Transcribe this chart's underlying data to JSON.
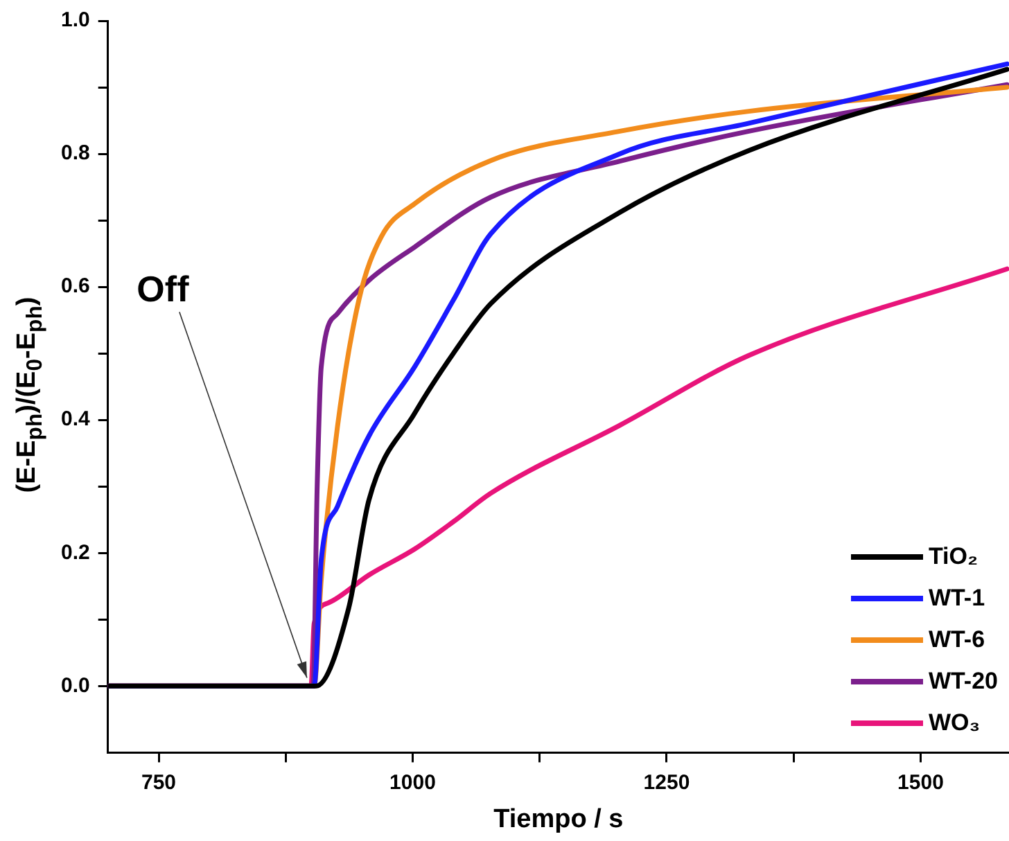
{
  "chart_data": {
    "type": "line",
    "xlabel": "Tiempo / s",
    "ylabel": "(E-E$_{ph}$)/(E$_{0}$-E$_{ph}$)",
    "xlim": [
      700,
      1587
    ],
    "ylim": [
      -0.1,
      1.0
    ],
    "xticks": [
      750,
      {
        "value": 875,
        "label": null
      },
      1000,
      {
        "value": 1125,
        "label": null
      },
      1250,
      {
        "value": 1375,
        "label": null
      },
      1500
    ],
    "yticks": [
      {
        "value": 0,
        "label": "0.0"
      },
      {
        "value": 0.1,
        "label": null
      },
      {
        "value": 0.2,
        "label": "0.2"
      },
      {
        "value": 0.3,
        "label": null
      },
      {
        "value": 0.4,
        "label": "0.4"
      },
      {
        "value": 0.5,
        "label": null
      },
      {
        "value": 0.6,
        "label": "0.6"
      },
      {
        "value": 0.7,
        "label": null
      },
      {
        "value": 0.8,
        "label": "0.8"
      },
      {
        "value": 0.9,
        "label": null
      },
      {
        "value": 1.0,
        "label": "1.0"
      }
    ],
    "grid": false,
    "legend": "bottom right",
    "marker": "none",
    "line_style": "solid",
    "annotations": [
      {
        "text": "Off",
        "x": 900,
        "y": 0
      }
    ],
    "series": [
      {
        "name": "TiO₂",
        "color": "#000000",
        "x": [
          700,
          905,
          937,
          957,
          1002,
          1040,
          1077,
          1204,
          1331,
          1585
        ],
        "values": [
          0,
          0,
          0.117,
          0.28,
          0.41,
          0.5,
          0.575,
          0.712,
          0.805,
          0.927
        ]
      },
      {
        "name": "WT-1",
        "color": "#1a1aff",
        "x": [
          700,
          903,
          910,
          926,
          957,
          1002,
          1040,
          1077,
          1204,
          1331,
          1585
        ],
        "values": [
          0,
          0,
          0.19,
          0.27,
          0.376,
          0.48,
          0.58,
          0.68,
          0.8,
          0.846,
          0.935
        ]
      },
      {
        "name": "WT-6",
        "color": "#f28c1c",
        "x": [
          700,
          903,
          910,
          926,
          947,
          969,
          1002,
          1077,
          1204,
          1331,
          1585
        ],
        "values": [
          0,
          0,
          0.16,
          0.39,
          0.58,
          0.675,
          0.725,
          0.79,
          0.834,
          0.864,
          0.9
        ]
      },
      {
        "name": "WT-20",
        "color": "#7b1f8c",
        "x": [
          700,
          902,
          906,
          910,
          926,
          957,
          1002,
          1077,
          1204,
          1331,
          1585
        ],
        "values": [
          0,
          0,
          0.3,
          0.48,
          0.56,
          0.61,
          0.66,
          0.735,
          0.789,
          0.834,
          0.904
        ]
      },
      {
        "name": "WO₃",
        "color": "#e8147a",
        "x": [
          700,
          900,
          903,
          917,
          957,
          1002,
          1040,
          1077,
          1204,
          1331,
          1585
        ],
        "values": [
          0,
          0,
          0.094,
          0.125,
          0.167,
          0.206,
          0.247,
          0.29,
          0.392,
          0.497,
          0.627
        ]
      }
    ]
  }
}
